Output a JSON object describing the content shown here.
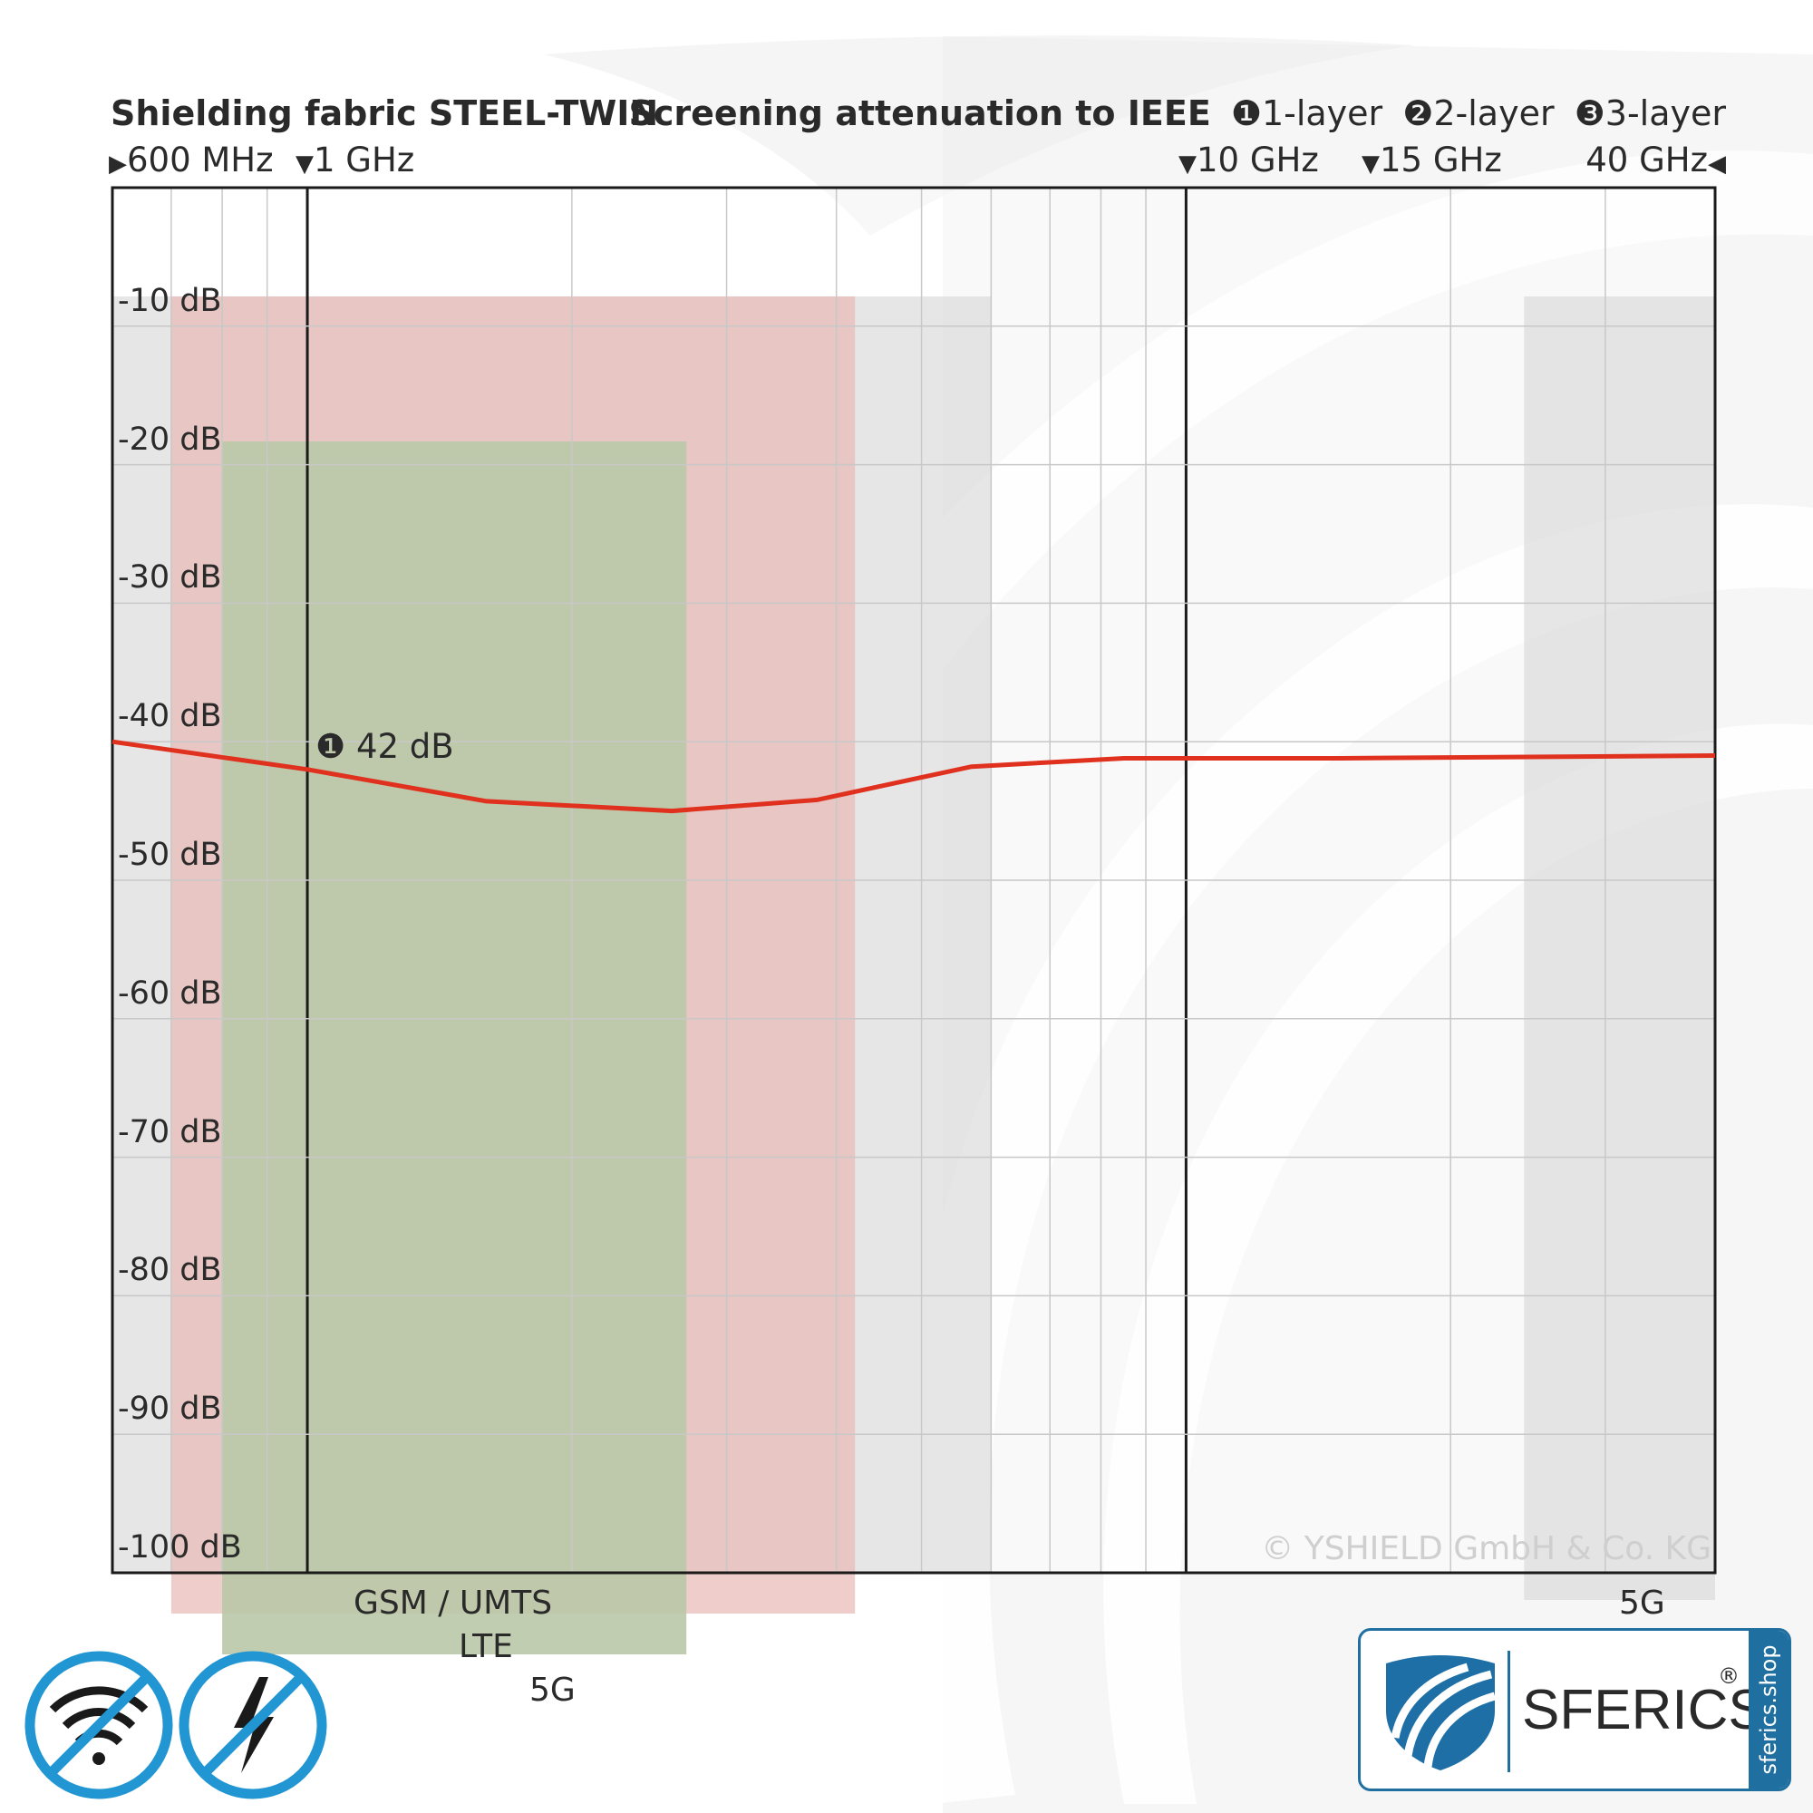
{
  "header": {
    "title": "Shielding fabric STEEL-TWIN",
    "attenuation_label": "Screening attenuation to IEEE",
    "layer_legend": [
      {
        "marker": "❶",
        "label": "1-layer"
      },
      {
        "marker": "❷",
        "label": "2-layer"
      },
      {
        "marker": "❸",
        "label": "3-layer"
      }
    ],
    "freq_markers": [
      {
        "label": "600 MHz",
        "glyph": "▶"
      },
      {
        "label": "1 GHz",
        "glyph": "▼"
      },
      {
        "label": "10 GHz",
        "glyph": "▼"
      },
      {
        "label": "15 GHz",
        "glyph": "▼"
      },
      {
        "label": "40 GHz",
        "glyph": "◀"
      }
    ]
  },
  "chart_data": {
    "type": "line",
    "x_scale": "log",
    "x_unit": "GHz",
    "xlim": [
      0.6,
      40
    ],
    "ylim": [
      -100,
      0
    ],
    "y_ticks": [
      "-10 dB",
      "-20 dB",
      "-30 dB",
      "-40 dB",
      "-50 dB",
      "-60 dB",
      "-70 dB",
      "-80 dB",
      "-90 dB",
      "-100 dB"
    ],
    "grid": true,
    "series": [
      {
        "marker": "❶",
        "color": "#e0301e",
        "x": [
          0.6,
          1,
          1.6,
          2.6,
          3.8,
          5.7,
          8.5,
          10,
          15,
          40
        ],
        "y": [
          -40,
          -42,
          -44.3,
          -45,
          -44.2,
          -41.8,
          -41.2,
          -41.2,
          -41.2,
          -41
        ]
      }
    ],
    "annotations": [
      {
        "marker": "❶",
        "text": "42 dB",
        "x": 1,
        "y": -42
      }
    ],
    "bands": [
      {
        "label": "GSM / UMTS",
        "from": 0.8,
        "to": 2.7,
        "color": "#b9c8a7"
      },
      {
        "label": "LTE",
        "from": 0.7,
        "to": 4.2,
        "color": "#e7b8b3"
      },
      {
        "label": "5G",
        "from": 0.6,
        "to": 6,
        "color": "#dcdcdc"
      },
      {
        "label": "5G",
        "from": 24.25,
        "to": 40,
        "color": "#dcdcdc"
      }
    ],
    "watermark": "© YSHIELD GmbH & Co. KG"
  },
  "logo": {
    "brand": "SFERICS",
    "reg": "®",
    "side_text": "sferics.shop"
  },
  "colors": {
    "curve": "#e0301e",
    "brand_blue": "#1f6fa0",
    "icon_blue": "#2196d3"
  }
}
